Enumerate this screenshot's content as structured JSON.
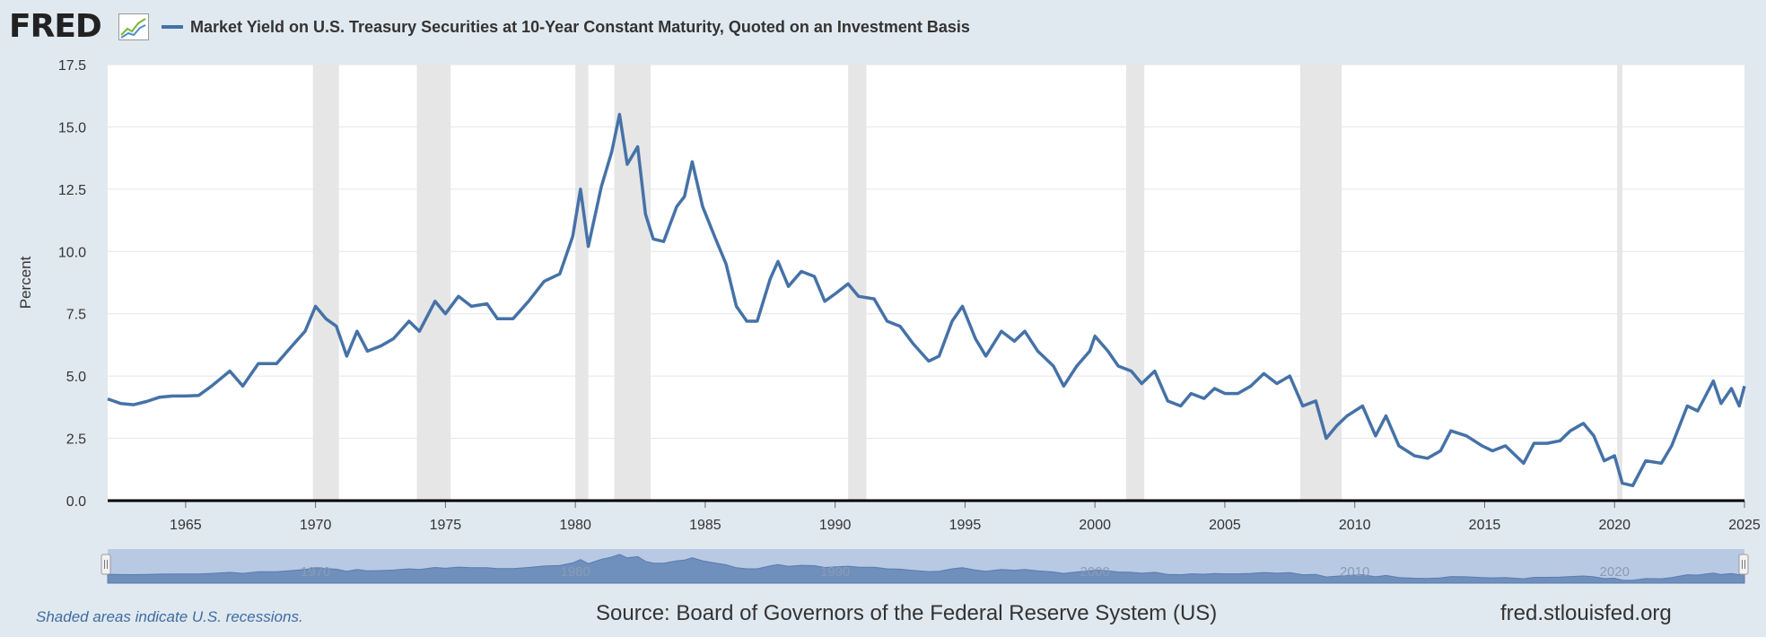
{
  "header": {
    "logo": "FRED",
    "logo_icon": "fred-graph-icon",
    "legend_label": "Market Yield on U.S. Treasury Securities at 10-Year Constant Maturity, Quoted on an Investment Basis"
  },
  "footer": {
    "recession_note": "Shaded areas indicate U.S. recessions.",
    "source": "Source: Board of Governors of the Federal Reserve System (US)",
    "site": "fred.stlouisfed.org"
  },
  "colors": {
    "series": "#4572a7",
    "recession": "#e6e6e6",
    "background": "#e1e9f0",
    "plot": "#ffffff",
    "navigator_fill": "#b8c9e3",
    "navigator_area": "#6f8fbd"
  },
  "chart_data": {
    "type": "line",
    "title": "",
    "xlabel": "",
    "ylabel": "Percent",
    "xlim": [
      1962.0,
      2025.0
    ],
    "ylim": [
      0,
      17.5
    ],
    "y_ticks": [
      "0.0",
      "2.5",
      "5.0",
      "7.5",
      "10.0",
      "12.5",
      "15.0",
      "17.5"
    ],
    "x_ticks": [
      "1965",
      "1970",
      "1975",
      "1980",
      "1985",
      "1990",
      "1995",
      "2000",
      "2005",
      "2010",
      "2015",
      "2020",
      "2025"
    ],
    "navigator_ticks": [
      "1970",
      "1980",
      "1990",
      "2000",
      "2010",
      "2020"
    ],
    "grid": true,
    "legend_position": "top-left",
    "recessions": [
      [
        1969.9,
        1970.9
      ],
      [
        1973.9,
        1975.2
      ],
      [
        1980.0,
        1980.5
      ],
      [
        1981.5,
        1982.9
      ],
      [
        1990.5,
        1991.2
      ],
      [
        2001.2,
        2001.9
      ],
      [
        2007.9,
        2009.5
      ],
      [
        2020.1,
        2020.3
      ]
    ],
    "series": [
      {
        "values": [
          [
            1962.0,
            4.08
          ],
          [
            1962.5,
            3.9
          ],
          [
            1963.0,
            3.85
          ],
          [
            1963.5,
            3.98
          ],
          [
            1964.0,
            4.15
          ],
          [
            1964.5,
            4.2
          ],
          [
            1965.0,
            4.2
          ],
          [
            1965.5,
            4.22
          ],
          [
            1966.0,
            4.6
          ],
          [
            1966.7,
            5.2
          ],
          [
            1967.2,
            4.6
          ],
          [
            1967.8,
            5.5
          ],
          [
            1968.5,
            5.5
          ],
          [
            1969.0,
            6.1
          ],
          [
            1969.6,
            6.8
          ],
          [
            1970.0,
            7.8
          ],
          [
            1970.4,
            7.3
          ],
          [
            1970.8,
            7.0
          ],
          [
            1971.2,
            5.8
          ],
          [
            1971.6,
            6.8
          ],
          [
            1972.0,
            6.0
          ],
          [
            1972.5,
            6.2
          ],
          [
            1973.0,
            6.5
          ],
          [
            1973.6,
            7.2
          ],
          [
            1974.0,
            6.8
          ],
          [
            1974.6,
            8.0
          ],
          [
            1975.0,
            7.5
          ],
          [
            1975.5,
            8.2
          ],
          [
            1976.0,
            7.8
          ],
          [
            1976.6,
            7.9
          ],
          [
            1977.0,
            7.3
          ],
          [
            1977.6,
            7.3
          ],
          [
            1978.2,
            8.0
          ],
          [
            1978.8,
            8.8
          ],
          [
            1979.4,
            9.1
          ],
          [
            1979.9,
            10.6
          ],
          [
            1980.2,
            12.5
          ],
          [
            1980.5,
            10.2
          ],
          [
            1981.0,
            12.6
          ],
          [
            1981.4,
            14.0
          ],
          [
            1981.7,
            15.5
          ],
          [
            1982.0,
            13.5
          ],
          [
            1982.4,
            14.2
          ],
          [
            1982.7,
            11.5
          ],
          [
            1983.0,
            10.5
          ],
          [
            1983.4,
            10.4
          ],
          [
            1983.9,
            11.8
          ],
          [
            1984.2,
            12.2
          ],
          [
            1984.5,
            13.6
          ],
          [
            1984.9,
            11.8
          ],
          [
            1985.4,
            10.5
          ],
          [
            1985.8,
            9.5
          ],
          [
            1986.2,
            7.8
          ],
          [
            1986.6,
            7.2
          ],
          [
            1987.0,
            7.2
          ],
          [
            1987.5,
            8.9
          ],
          [
            1987.8,
            9.6
          ],
          [
            1988.2,
            8.6
          ],
          [
            1988.7,
            9.2
          ],
          [
            1989.2,
            9.0
          ],
          [
            1989.6,
            8.0
          ],
          [
            1990.0,
            8.3
          ],
          [
            1990.5,
            8.7
          ],
          [
            1990.9,
            8.2
          ],
          [
            1991.5,
            8.1
          ],
          [
            1992.0,
            7.2
          ],
          [
            1992.5,
            7.0
          ],
          [
            1993.0,
            6.3
          ],
          [
            1993.6,
            5.6
          ],
          [
            1994.0,
            5.8
          ],
          [
            1994.5,
            7.2
          ],
          [
            1994.9,
            7.8
          ],
          [
            1995.4,
            6.5
          ],
          [
            1995.8,
            5.8
          ],
          [
            1996.4,
            6.8
          ],
          [
            1996.9,
            6.4
          ],
          [
            1997.3,
            6.8
          ],
          [
            1997.8,
            6.0
          ],
          [
            1998.4,
            5.4
          ],
          [
            1998.8,
            4.6
          ],
          [
            1999.3,
            5.4
          ],
          [
            1999.8,
            6.0
          ],
          [
            2000.0,
            6.6
          ],
          [
            2000.5,
            6.0
          ],
          [
            2000.9,
            5.4
          ],
          [
            2001.4,
            5.2
          ],
          [
            2001.8,
            4.7
          ],
          [
            2002.3,
            5.2
          ],
          [
            2002.8,
            4.0
          ],
          [
            2003.3,
            3.8
          ],
          [
            2003.7,
            4.3
          ],
          [
            2004.2,
            4.1
          ],
          [
            2004.6,
            4.5
          ],
          [
            2005.0,
            4.3
          ],
          [
            2005.5,
            4.3
          ],
          [
            2006.0,
            4.6
          ],
          [
            2006.5,
            5.1
          ],
          [
            2007.0,
            4.7
          ],
          [
            2007.5,
            5.0
          ],
          [
            2008.0,
            3.8
          ],
          [
            2008.5,
            4.0
          ],
          [
            2008.9,
            2.5
          ],
          [
            2009.3,
            3.0
          ],
          [
            2009.7,
            3.4
          ],
          [
            2010.3,
            3.8
          ],
          [
            2010.8,
            2.6
          ],
          [
            2011.2,
            3.4
          ],
          [
            2011.7,
            2.2
          ],
          [
            2012.3,
            1.8
          ],
          [
            2012.8,
            1.7
          ],
          [
            2013.3,
            2.0
          ],
          [
            2013.7,
            2.8
          ],
          [
            2014.3,
            2.6
          ],
          [
            2014.9,
            2.2
          ],
          [
            2015.3,
            2.0
          ],
          [
            2015.8,
            2.2
          ],
          [
            2016.5,
            1.5
          ],
          [
            2016.9,
            2.3
          ],
          [
            2017.4,
            2.3
          ],
          [
            2017.9,
            2.4
          ],
          [
            2018.3,
            2.8
          ],
          [
            2018.8,
            3.1
          ],
          [
            2019.2,
            2.6
          ],
          [
            2019.6,
            1.6
          ],
          [
            2020.0,
            1.8
          ],
          [
            2020.3,
            0.7
          ],
          [
            2020.7,
            0.6
          ],
          [
            2021.2,
            1.6
          ],
          [
            2021.8,
            1.5
          ],
          [
            2022.2,
            2.2
          ],
          [
            2022.8,
            3.8
          ],
          [
            2023.2,
            3.6
          ],
          [
            2023.8,
            4.8
          ],
          [
            2024.1,
            3.9
          ],
          [
            2024.5,
            4.5
          ],
          [
            2024.8,
            3.8
          ],
          [
            2025.0,
            4.6
          ]
        ]
      }
    ]
  }
}
